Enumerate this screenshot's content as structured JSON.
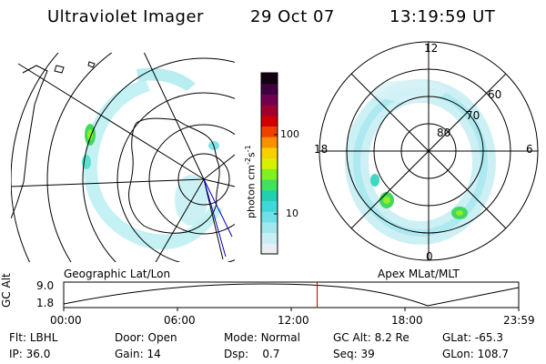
{
  "header": {
    "instrument": "Ultraviolet Imager",
    "date": "29 Oct 07",
    "time": "13:19:59 UT"
  },
  "left_panel": {
    "caption": "Geographic Lat/Lon"
  },
  "right_panel": {
    "caption": "Apex MLat/MLT",
    "lat_labels": [
      "80",
      "70",
      "60"
    ],
    "mlt_labels": [
      "12",
      "18",
      "6",
      "0"
    ]
  },
  "colorbar": {
    "unit_label": "photon cm",
    "unit_exp1": "-2",
    "unit_s": "s",
    "unit_exp2": "-1",
    "ticks": [
      "100",
      "10"
    ],
    "colors": [
      "#e8eef2",
      "#c8eef4",
      "#a0e8ee",
      "#70e0e8",
      "#40d8d8",
      "#20d0b0",
      "#40e060",
      "#80f020",
      "#d8f000",
      "#f8d000",
      "#f89000",
      "#f04000",
      "#d00000",
      "#a00030",
      "#700050",
      "#400040",
      "#100010"
    ]
  },
  "timeline": {
    "axis_label": "GC Alt",
    "y_ticks": [
      "9.0",
      "1.8"
    ],
    "x_ticks": [
      "00:00",
      "06:00",
      "12:00",
      "18:00",
      "23:59"
    ],
    "cursor_fraction": 0.557,
    "cursor_color": "#c00000"
  },
  "info": {
    "flt_label": "Flt:",
    "flt_value": "LBHL",
    "door_label": "Door:",
    "door_value": "Open",
    "mode_label": "Mode:",
    "mode_value": "Normal",
    "gcalt_label": "GC Alt:",
    "gcalt_value": "8.2 Re",
    "glat_label": "GLat:",
    "glat_value": "-65.3",
    "ip_label": "IP:",
    "ip_value": "36.0",
    "gain_label": "Gain:",
    "gain_value": "14",
    "dsp_label": "Dsp:",
    "dsp_value": "0.7",
    "seq_label": "Seq:",
    "seq_value": "39",
    "glon_label": "GLon:",
    "glon_value": "108.7"
  }
}
